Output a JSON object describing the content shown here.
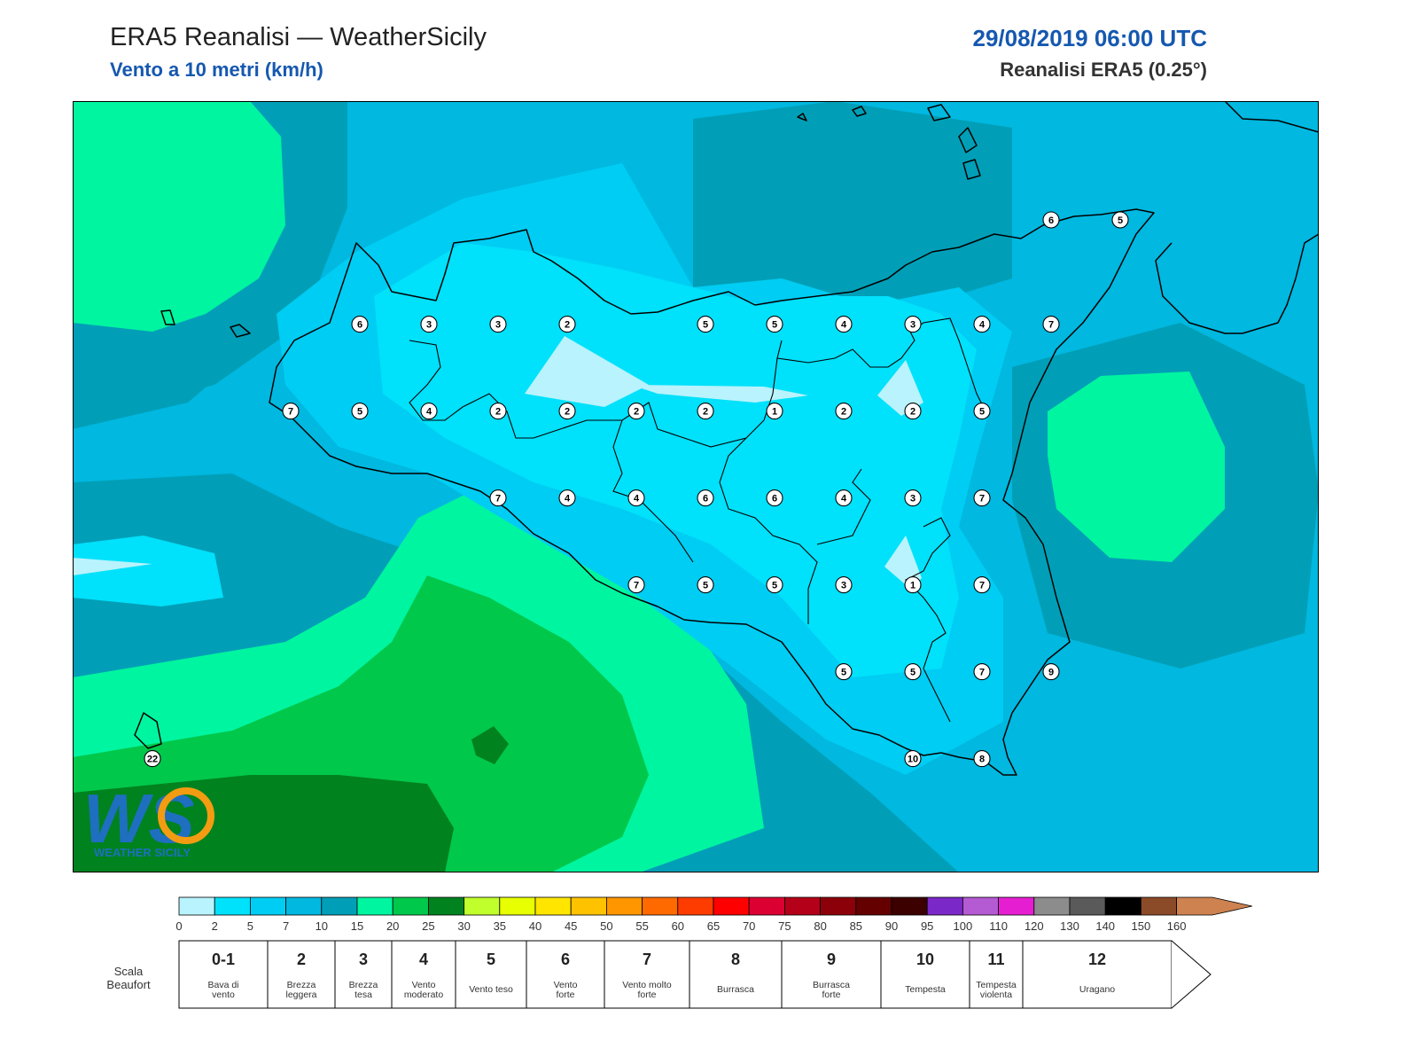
{
  "header": {
    "title": "ERA5 Reanalisi — WeatherSicily",
    "subtitle": "Vento a 10 metri (km/h)",
    "datetime": "29/08/2019 06:00 UTC",
    "source": "Reanalisi ERA5 (0.25°)"
  },
  "logo": {
    "text": "WS",
    "caption": "WEATHER SICILY"
  },
  "colorbar": {
    "colors": [
      "#b9f3fd",
      "#00e1fb",
      "#00cdf3",
      "#00b8e0",
      "#009fb7",
      "#00f5a0",
      "#00c84b",
      "#00821f",
      "#c0ff2c",
      "#e7ff00",
      "#ffe500",
      "#ffc200",
      "#ff9600",
      "#ff6a00",
      "#ff3c00",
      "#ff0000",
      "#dc0032",
      "#b40018",
      "#8c000a",
      "#640000",
      "#3c0000",
      "#7b28c8",
      "#b45ad2",
      "#e61ed2",
      "#8c8c8c",
      "#5a5a5a",
      "#000000",
      "#8c4b28",
      "#cd8250"
    ],
    "ticks": [
      "0",
      "2",
      "5",
      "7",
      "10",
      "15",
      "20",
      "25",
      "30",
      "35",
      "40",
      "45",
      "50",
      "55",
      "60",
      "65",
      "70",
      "75",
      "80",
      "85",
      "90",
      "95",
      "100",
      "110",
      "120",
      "130",
      "140",
      "150",
      "160"
    ]
  },
  "beaufort": {
    "label_line1": "Scala",
    "label_line2": "Beaufort",
    "classes": [
      {
        "num": "0-1",
        "desc1": "Bava di",
        "desc2": "vento"
      },
      {
        "num": "2",
        "desc1": "Brezza",
        "desc2": "leggera"
      },
      {
        "num": "3",
        "desc1": "Brezza",
        "desc2": "tesa"
      },
      {
        "num": "4",
        "desc1": "Vento",
        "desc2": "moderato"
      },
      {
        "num": "5",
        "desc1": "Vento teso",
        "desc2": ""
      },
      {
        "num": "6",
        "desc1": "Vento",
        "desc2": "forte"
      },
      {
        "num": "7",
        "desc1": "Vento molto",
        "desc2": "forte"
      },
      {
        "num": "8",
        "desc1": "Burrasca",
        "desc2": ""
      },
      {
        "num": "9",
        "desc1": "Burrasca",
        "desc2": "forte"
      },
      {
        "num": "10",
        "desc1": "Tempesta",
        "desc2": ""
      },
      {
        "num": "11",
        "desc1": "Tempesta",
        "desc2": "violenta"
      },
      {
        "num": "12",
        "desc1": "Uragano",
        "desc2": ""
      }
    ]
  },
  "stations": [
    {
      "v": "6",
      "lon": 12.8,
      "lat": 38.0
    },
    {
      "v": "3",
      "lon": 13.3,
      "lat": 38.0
    },
    {
      "v": "3",
      "lon": 13.8,
      "lat": 38.0
    },
    {
      "v": "2",
      "lon": 14.3,
      "lat": 38.0
    },
    {
      "v": "5",
      "lon": 15.3,
      "lat": 38.0
    },
    {
      "v": "5",
      "lon": 15.8,
      "lat": 38.0
    },
    {
      "v": "4",
      "lon": 16.3,
      "lat": 38.0
    },
    {
      "v": "3",
      "lon": 16.8,
      "lat": 38.0
    },
    {
      "v": "4",
      "lon": 17.3,
      "lat": 38.0
    },
    {
      "v": "7",
      "lon": 17.8,
      "lat": 38.0
    },
    {
      "v": "6",
      "lon": 17.8,
      "lat": 38.6
    },
    {
      "v": "5",
      "lon": 18.3,
      "lat": 38.6
    },
    {
      "v": "7",
      "lon": 12.3,
      "lat": 37.5
    },
    {
      "v": "5",
      "lon": 12.8,
      "lat": 37.5
    },
    {
      "v": "4",
      "lon": 13.3,
      "lat": 37.5
    },
    {
      "v": "2",
      "lon": 13.8,
      "lat": 37.5
    },
    {
      "v": "2",
      "lon": 14.3,
      "lat": 37.5
    },
    {
      "v": "2",
      "lon": 14.8,
      "lat": 37.5
    },
    {
      "v": "2",
      "lon": 15.3,
      "lat": 37.5
    },
    {
      "v": "1",
      "lon": 15.8,
      "lat": 37.5
    },
    {
      "v": "2",
      "lon": 16.3,
      "lat": 37.5
    },
    {
      "v": "2",
      "lon": 16.8,
      "lat": 37.5
    },
    {
      "v": "5",
      "lon": 17.3,
      "lat": 37.5
    },
    {
      "v": "7",
      "lon": 13.8,
      "lat": 37.0
    },
    {
      "v": "4",
      "lon": 14.3,
      "lat": 37.0
    },
    {
      "v": "4",
      "lon": 14.8,
      "lat": 37.0
    },
    {
      "v": "6",
      "lon": 15.3,
      "lat": 37.0
    },
    {
      "v": "6",
      "lon": 15.8,
      "lat": 37.0
    },
    {
      "v": "4",
      "lon": 16.3,
      "lat": 37.0
    },
    {
      "v": "3",
      "lon": 16.8,
      "lat": 37.0
    },
    {
      "v": "7",
      "lon": 17.3,
      "lat": 37.0
    },
    {
      "v": "7",
      "lon": 14.8,
      "lat": 36.5
    },
    {
      "v": "5",
      "lon": 15.3,
      "lat": 36.5
    },
    {
      "v": "5",
      "lon": 15.8,
      "lat": 36.5
    },
    {
      "v": "3",
      "lon": 16.3,
      "lat": 36.5
    },
    {
      "v": "1",
      "lon": 16.8,
      "lat": 36.5
    },
    {
      "v": "7",
      "lon": 17.3,
      "lat": 36.5
    },
    {
      "v": "5",
      "lon": 16.3,
      "lat": 36.0
    },
    {
      "v": "5",
      "lon": 16.8,
      "lat": 36.0
    },
    {
      "v": "7",
      "lon": 17.3,
      "lat": 36.0
    },
    {
      "v": "9",
      "lon": 17.8,
      "lat": 36.0
    },
    {
      "v": "10",
      "lon": 16.8,
      "lat": 35.5
    },
    {
      "v": "8",
      "lon": 17.3,
      "lat": 35.5
    },
    {
      "v": "22",
      "lon": 11.3,
      "lat": 35.5
    }
  ]
}
